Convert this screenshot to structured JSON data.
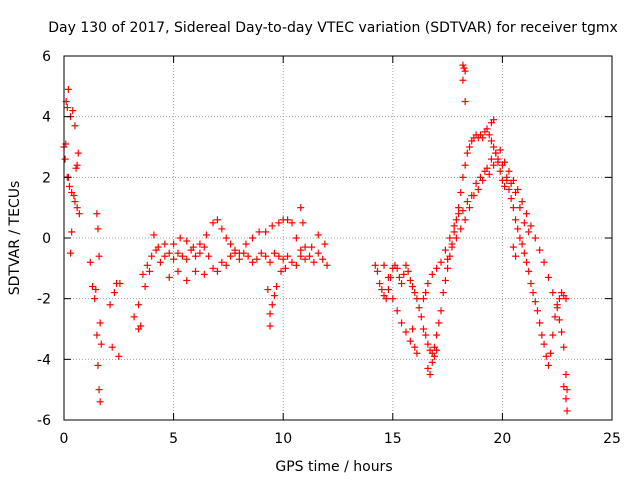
{
  "chart_data": {
    "type": "scatter",
    "title": "Day 130 of 2017, Sidereal Day-to-day VTEC variation (SDTVAR) for receiver tgmx",
    "xlabel": "GPS time / hours",
    "ylabel": "SDTVAR / TECUs",
    "xlim": [
      0,
      25
    ],
    "ylim": [
      -6,
      6
    ],
    "xticks": [
      0,
      5,
      10,
      15,
      20,
      25
    ],
    "yticks": [
      -6,
      -4,
      -2,
      0,
      2,
      4,
      6
    ],
    "grid": true,
    "marker": "+",
    "series_color": "#ff0000",
    "series": [
      {
        "name": "tgmx",
        "points": [
          [
            0.0,
            3.0
          ],
          [
            0.05,
            2.6
          ],
          [
            0.1,
            4.5
          ],
          [
            0.15,
            4.3
          ],
          [
            0.2,
            2.0
          ],
          [
            0.25,
            1.7
          ],
          [
            0.3,
            4.0
          ],
          [
            0.35,
            1.5
          ],
          [
            0.4,
            4.2
          ],
          [
            0.45,
            1.4
          ],
          [
            0.5,
            1.2
          ],
          [
            0.55,
            2.3
          ],
          [
            0.6,
            1.0
          ],
          [
            0.65,
            2.8
          ],
          [
            0.7,
            0.8
          ],
          [
            0.2,
            4.9
          ],
          [
            0.08,
            3.1
          ],
          [
            0.15,
            2.0
          ],
          [
            0.5,
            3.7
          ],
          [
            0.6,
            2.4
          ],
          [
            0.3,
            -0.5
          ],
          [
            0.35,
            0.2
          ],
          [
            1.2,
            -0.8
          ],
          [
            1.3,
            -1.6
          ],
          [
            1.4,
            -2.0
          ],
          [
            1.5,
            -3.2
          ],
          [
            1.55,
            -4.2
          ],
          [
            1.6,
            -5.0
          ],
          [
            1.65,
            -5.4
          ],
          [
            1.7,
            -3.5
          ],
          [
            1.5,
            0.8
          ],
          [
            1.55,
            0.3
          ],
          [
            1.6,
            -0.6
          ],
          [
            1.45,
            -1.7
          ],
          [
            1.65,
            -2.8
          ],
          [
            2.1,
            -2.2
          ],
          [
            2.2,
            -3.6
          ],
          [
            2.3,
            -1.8
          ],
          [
            2.4,
            -1.5
          ],
          [
            2.5,
            -3.9
          ],
          [
            2.55,
            -1.5
          ],
          [
            3.2,
            -2.6
          ],
          [
            3.4,
            -2.2
          ],
          [
            3.6,
            -1.2
          ],
          [
            3.8,
            -0.9
          ],
          [
            4.0,
            -0.6
          ],
          [
            4.2,
            -0.4
          ],
          [
            4.4,
            -0.8
          ],
          [
            4.6,
            -0.6
          ],
          [
            4.8,
            -0.5
          ],
          [
            5.0,
            -0.7
          ],
          [
            5.2,
            -0.5
          ],
          [
            5.4,
            -0.6
          ],
          [
            5.6,
            -0.7
          ],
          [
            5.8,
            -0.4
          ],
          [
            6.0,
            -0.6
          ],
          [
            6.2,
            -0.5
          ],
          [
            6.4,
            -0.3
          ],
          [
            6.6,
            -0.6
          ],
          [
            6.8,
            -1.0
          ],
          [
            7.0,
            -1.1
          ],
          [
            7.2,
            -0.8
          ],
          [
            7.4,
            -0.9
          ],
          [
            7.6,
            -0.6
          ],
          [
            7.8,
            -0.5
          ],
          [
            8.0,
            -0.7
          ],
          [
            8.2,
            -0.5
          ],
          [
            8.4,
            -0.6
          ],
          [
            8.6,
            -0.8
          ],
          [
            8.8,
            -0.7
          ],
          [
            9.0,
            -0.5
          ],
          [
            9.2,
            -0.6
          ],
          [
            9.4,
            -0.8
          ],
          [
            9.6,
            -0.5
          ],
          [
            9.8,
            -0.6
          ],
          [
            10.0,
            -0.7
          ],
          [
            10.2,
            -0.6
          ],
          [
            10.4,
            -0.8
          ],
          [
            10.6,
            -0.9
          ],
          [
            10.8,
            -0.6
          ],
          [
            11.0,
            -0.7
          ],
          [
            11.2,
            -0.6
          ],
          [
            11.4,
            -0.8
          ],
          [
            11.6,
            -0.5
          ],
          [
            11.8,
            -0.7
          ],
          [
            12.0,
            -0.9
          ],
          [
            3.4,
            -3.0
          ],
          [
            3.5,
            -2.9
          ],
          [
            3.7,
            -1.6
          ],
          [
            3.9,
            -1.1
          ],
          [
            4.1,
            0.1
          ],
          [
            4.3,
            -0.3
          ],
          [
            4.6,
            -0.2
          ],
          [
            5.0,
            -0.2
          ],
          [
            5.3,
            0.0
          ],
          [
            5.6,
            -0.1
          ],
          [
            5.9,
            -0.3
          ],
          [
            6.2,
            -0.2
          ],
          [
            6.5,
            0.1
          ],
          [
            6.8,
            0.5
          ],
          [
            7.0,
            0.6
          ],
          [
            7.2,
            0.3
          ],
          [
            7.4,
            0.0
          ],
          [
            7.6,
            -0.2
          ],
          [
            7.8,
            -0.4
          ],
          [
            8.0,
            -0.5
          ],
          [
            8.3,
            -0.2
          ],
          [
            8.6,
            0.0
          ],
          [
            8.9,
            0.2
          ],
          [
            9.2,
            0.2
          ],
          [
            9.5,
            0.4
          ],
          [
            9.8,
            0.5
          ],
          [
            10.0,
            0.6
          ],
          [
            10.2,
            0.6
          ],
          [
            10.4,
            0.5
          ],
          [
            10.6,
            0.0
          ],
          [
            10.8,
            -0.4
          ],
          [
            11.0,
            -0.3
          ],
          [
            11.3,
            -0.3
          ],
          [
            11.6,
            0.1
          ],
          [
            11.9,
            -0.2
          ],
          [
            4.8,
            -1.3
          ],
          [
            5.2,
            -1.1
          ],
          [
            5.6,
            -1.4
          ],
          [
            6.0,
            -1.1
          ],
          [
            6.4,
            -1.2
          ],
          [
            9.3,
            -1.7
          ],
          [
            9.5,
            -2.2
          ],
          [
            9.4,
            -2.5
          ],
          [
            9.6,
            -1.9
          ],
          [
            9.7,
            -1.6
          ],
          [
            9.9,
            -1.1
          ],
          [
            10.1,
            -1.0
          ],
          [
            9.4,
            -2.9
          ],
          [
            10.8,
            1.0
          ],
          [
            10.9,
            0.5
          ],
          [
            14.2,
            -0.9
          ],
          [
            14.3,
            -1.1
          ],
          [
            14.4,
            -1.5
          ],
          [
            14.5,
            -1.7
          ],
          [
            14.6,
            -1.9
          ],
          [
            14.7,
            -2.0
          ],
          [
            14.8,
            -1.7
          ],
          [
            14.9,
            -1.3
          ],
          [
            15.0,
            -1.0
          ],
          [
            15.1,
            -0.9
          ],
          [
            15.2,
            -1.0
          ],
          [
            15.3,
            -1.3
          ],
          [
            15.4,
            -1.5
          ],
          [
            15.5,
            -1.2
          ],
          [
            15.6,
            -0.9
          ],
          [
            15.7,
            -1.1
          ],
          [
            15.8,
            -1.4
          ],
          [
            15.9,
            -1.6
          ],
          [
            16.0,
            -1.8
          ],
          [
            16.1,
            -2.0
          ],
          [
            16.2,
            -2.3
          ],
          [
            16.3,
            -2.6
          ],
          [
            16.4,
            -3.0
          ],
          [
            16.5,
            -3.2
          ],
          [
            16.6,
            -3.5
          ],
          [
            16.7,
            -3.7
          ],
          [
            16.8,
            -3.8
          ],
          [
            16.9,
            -3.6
          ],
          [
            17.0,
            -3.2
          ],
          [
            17.1,
            -2.8
          ],
          [
            17.2,
            -2.4
          ],
          [
            17.3,
            -1.8
          ],
          [
            17.4,
            -1.4
          ],
          [
            17.5,
            -1.0
          ],
          [
            17.6,
            -0.6
          ],
          [
            17.7,
            -0.2
          ],
          [
            17.8,
            0.2
          ],
          [
            17.9,
            0.6
          ],
          [
            18.0,
            1.0
          ],
          [
            18.1,
            1.5
          ],
          [
            18.2,
            2.0
          ],
          [
            18.3,
            2.4
          ],
          [
            18.4,
            2.8
          ],
          [
            18.5,
            3.0
          ],
          [
            18.6,
            3.2
          ],
          [
            18.7,
            3.3
          ],
          [
            18.8,
            3.4
          ],
          [
            18.9,
            3.3
          ],
          [
            19.0,
            3.4
          ],
          [
            19.1,
            3.3
          ],
          [
            19.2,
            3.5
          ],
          [
            19.3,
            3.6
          ],
          [
            19.4,
            3.4
          ],
          [
            19.5,
            3.2
          ],
          [
            19.6,
            3.0
          ],
          [
            19.7,
            2.8
          ],
          [
            19.8,
            2.5
          ],
          [
            19.9,
            2.2
          ],
          [
            20.0,
            1.9
          ],
          [
            20.1,
            1.7
          ],
          [
            20.2,
            1.9
          ],
          [
            20.3,
            1.6
          ],
          [
            20.4,
            1.3
          ],
          [
            20.5,
            1.0
          ],
          [
            20.6,
            0.6
          ],
          [
            20.7,
            0.3
          ],
          [
            20.8,
            0.0
          ],
          [
            20.9,
            -0.2
          ],
          [
            21.0,
            -0.5
          ],
          [
            21.1,
            -0.8
          ],
          [
            21.2,
            -1.1
          ],
          [
            21.3,
            -1.5
          ],
          [
            21.4,
            -1.8
          ],
          [
            21.5,
            -2.1
          ],
          [
            21.6,
            -2.4
          ],
          [
            21.7,
            -2.8
          ],
          [
            21.8,
            -3.2
          ],
          [
            21.9,
            -3.5
          ],
          [
            22.0,
            -3.9
          ],
          [
            22.1,
            -4.2
          ],
          [
            22.2,
            -3.8
          ],
          [
            22.3,
            -3.2
          ],
          [
            22.4,
            -2.6
          ],
          [
            22.5,
            -2.2
          ],
          [
            22.6,
            -2.0
          ],
          [
            22.7,
            -1.8
          ],
          [
            22.8,
            -1.9
          ],
          [
            22.9,
            -2.0
          ],
          [
            14.6,
            -0.9
          ],
          [
            14.8,
            -1.3
          ],
          [
            15.0,
            -2.0
          ],
          [
            15.2,
            -2.4
          ],
          [
            15.4,
            -2.8
          ],
          [
            15.6,
            -3.1
          ],
          [
            15.8,
            -3.4
          ],
          [
            16.0,
            -3.6
          ],
          [
            16.1,
            -3.8
          ],
          [
            15.9,
            -3.0
          ],
          [
            16.6,
            -4.3
          ],
          [
            16.7,
            -4.5
          ],
          [
            16.8,
            -4.1
          ],
          [
            16.9,
            -3.9
          ],
          [
            17.0,
            -3.7
          ],
          [
            16.4,
            -2.0
          ],
          [
            16.5,
            -1.8
          ],
          [
            16.6,
            -1.5
          ],
          [
            16.8,
            -1.2
          ],
          [
            17.0,
            -1.0
          ],
          [
            17.2,
            -0.8
          ],
          [
            17.4,
            -0.4
          ],
          [
            17.6,
            0.0
          ],
          [
            17.8,
            0.4
          ],
          [
            18.0,
            0.8
          ],
          [
            18.2,
            0.9
          ],
          [
            18.4,
            1.2
          ],
          [
            18.6,
            1.4
          ],
          [
            18.8,
            1.8
          ],
          [
            19.0,
            2.0
          ],
          [
            19.2,
            2.2
          ],
          [
            19.4,
            2.1
          ],
          [
            19.6,
            2.4
          ],
          [
            19.8,
            2.6
          ],
          [
            20.0,
            2.4
          ],
          [
            17.5,
            -0.7
          ],
          [
            17.7,
            -0.3
          ],
          [
            17.9,
            0.0
          ],
          [
            18.1,
            0.3
          ],
          [
            18.3,
            0.6
          ],
          [
            18.5,
            1.0
          ],
          [
            18.7,
            1.4
          ],
          [
            18.9,
            1.6
          ],
          [
            19.1,
            1.9
          ],
          [
            19.3,
            2.3
          ],
          [
            19.5,
            2.6
          ],
          [
            19.7,
            2.8
          ],
          [
            19.9,
            2.9
          ],
          [
            20.1,
            2.5
          ],
          [
            20.3,
            2.2
          ],
          [
            20.5,
            1.9
          ],
          [
            20.7,
            1.6
          ],
          [
            20.9,
            1.2
          ],
          [
            21.1,
            0.8
          ],
          [
            21.3,
            0.4
          ],
          [
            21.5,
            0.0
          ],
          [
            21.7,
            -0.4
          ],
          [
            21.9,
            -0.8
          ],
          [
            22.1,
            -1.3
          ],
          [
            22.3,
            -1.8
          ],
          [
            22.5,
            -2.3
          ],
          [
            22.6,
            -2.7
          ],
          [
            22.7,
            -3.1
          ],
          [
            22.8,
            -3.6
          ],
          [
            22.9,
            -4.5
          ],
          [
            22.95,
            -5.0
          ],
          [
            22.9,
            -5.3
          ],
          [
            22.95,
            -5.7
          ],
          [
            22.8,
            -4.9
          ],
          [
            18.2,
            5.7
          ],
          [
            18.25,
            5.6
          ],
          [
            18.3,
            5.5
          ],
          [
            18.2,
            5.2
          ],
          [
            18.3,
            4.5
          ],
          [
            19.5,
            3.8
          ],
          [
            19.6,
            3.9
          ],
          [
            20.2,
            2.0
          ],
          [
            20.4,
            1.8
          ],
          [
            20.6,
            1.5
          ],
          [
            20.8,
            1.0
          ],
          [
            21.0,
            0.5
          ],
          [
            21.2,
            0.2
          ],
          [
            20.5,
            -0.3
          ],
          [
            20.6,
            -0.6
          ]
        ]
      }
    ]
  }
}
